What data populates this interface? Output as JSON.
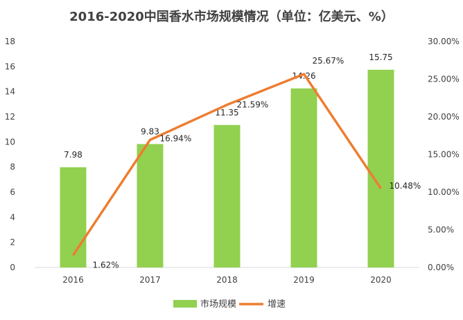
{
  "chart_data": {
    "type": "bar+line",
    "title": "2016-2020中国香水市场规模情况（单位：亿美元、%）",
    "categories": [
      "2016",
      "2017",
      "2018",
      "2019",
      "2020"
    ],
    "series": [
      {
        "name": "市场规模",
        "type": "bar",
        "axis": "left",
        "color": "#92D050",
        "values": [
          7.98,
          9.83,
          11.35,
          14.26,
          15.75
        ],
        "labels": [
          "7.98",
          "9.83",
          "11.35",
          "14.26",
          "15.75"
        ]
      },
      {
        "name": "增速",
        "type": "line",
        "axis": "right",
        "color": "#ED7D31",
        "values": [
          1.62,
          16.94,
          21.59,
          25.67,
          10.48
        ],
        "labels": [
          "1.62%",
          "16.94%",
          "21.59%",
          "25.67%",
          "10.48%"
        ]
      }
    ],
    "y_left": {
      "min": 0,
      "max": 18,
      "step": 2,
      "ticks": [
        "0",
        "2",
        "4",
        "6",
        "8",
        "10",
        "12",
        "14",
        "16",
        "18"
      ]
    },
    "y_right": {
      "min": 0,
      "max": 30,
      "step": 5,
      "ticks": [
        "0.00%",
        "5.00%",
        "10.00%",
        "15.00%",
        "20.00%",
        "25.00%",
        "30.00%"
      ]
    },
    "legend_position": "bottom",
    "grid": false
  }
}
